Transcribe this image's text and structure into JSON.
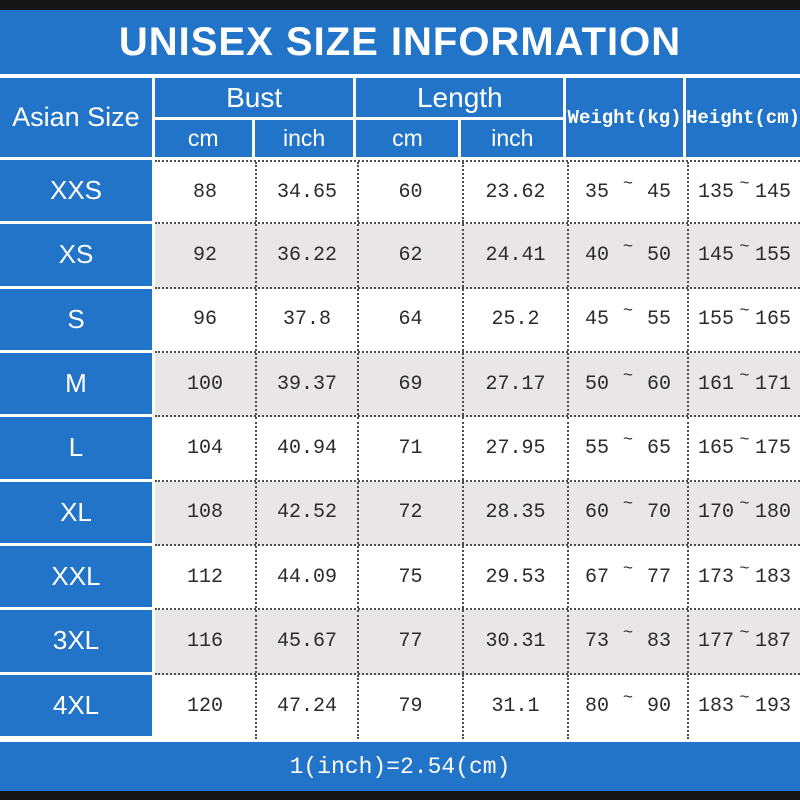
{
  "title": "UNISEX SIZE INFORMATION",
  "header": {
    "size_col": "Asian Size",
    "groups": [
      {
        "label": "Bust",
        "subs": [
          "cm",
          "inch"
        ]
      },
      {
        "label": "Length",
        "subs": [
          "cm",
          "inch"
        ]
      }
    ],
    "weight": "Weight(kg)",
    "height": "Height(cm)"
  },
  "range_separator": "~",
  "rows": [
    {
      "size": "XXS",
      "bust_cm": "88",
      "bust_inch": "34.65",
      "len_cm": "60",
      "len_inch": "23.62",
      "weight_min": "35",
      "weight_max": "45",
      "height_min": "135",
      "height_max": "145"
    },
    {
      "size": "XS",
      "bust_cm": "92",
      "bust_inch": "36.22",
      "len_cm": "62",
      "len_inch": "24.41",
      "weight_min": "40",
      "weight_max": "50",
      "height_min": "145",
      "height_max": "155"
    },
    {
      "size": "S",
      "bust_cm": "96",
      "bust_inch": "37.8",
      "len_cm": "64",
      "len_inch": "25.2",
      "weight_min": "45",
      "weight_max": "55",
      "height_min": "155",
      "height_max": "165"
    },
    {
      "size": "M",
      "bust_cm": "100",
      "bust_inch": "39.37",
      "len_cm": "69",
      "len_inch": "27.17",
      "weight_min": "50",
      "weight_max": "60",
      "height_min": "161",
      "height_max": "171"
    },
    {
      "size": "L",
      "bust_cm": "104",
      "bust_inch": "40.94",
      "len_cm": "71",
      "len_inch": "27.95",
      "weight_min": "55",
      "weight_max": "65",
      "height_min": "165",
      "height_max": "175"
    },
    {
      "size": "XL",
      "bust_cm": "108",
      "bust_inch": "42.52",
      "len_cm": "72",
      "len_inch": "28.35",
      "weight_min": "60",
      "weight_max": "70",
      "height_min": "170",
      "height_max": "180"
    },
    {
      "size": "XXL",
      "bust_cm": "112",
      "bust_inch": "44.09",
      "len_cm": "75",
      "len_inch": "29.53",
      "weight_min": "67",
      "weight_max": "77",
      "height_min": "173",
      "height_max": "183"
    },
    {
      "size": "3XL",
      "bust_cm": "116",
      "bust_inch": "45.67",
      "len_cm": "77",
      "len_inch": "30.31",
      "weight_min": "73",
      "weight_max": "83",
      "height_min": "177",
      "height_max": "187"
    },
    {
      "size": "4XL",
      "bust_cm": "120",
      "bust_inch": "47.24",
      "len_cm": "79",
      "len_inch": "31.1",
      "weight_min": "80",
      "weight_max": "90",
      "height_min": "183",
      "height_max": "193"
    }
  ],
  "footer": "1(inch)=2.54(cm)",
  "colors": {
    "blue": "#2274c8",
    "row_alt": "#e8e6e7",
    "bar_black": "#161616",
    "grid_dotted": "#4d4d4d",
    "text": "#2b2b2b"
  }
}
